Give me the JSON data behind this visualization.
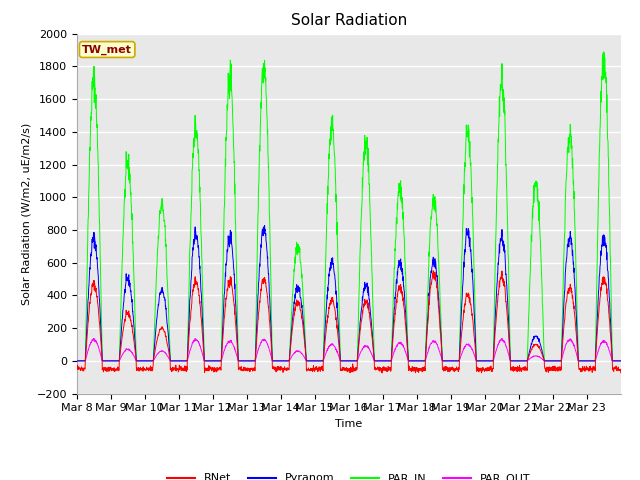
{
  "title": "Solar Radiation",
  "ylabel": "Solar Radiation (W/m2, uE/m2/s)",
  "xlabel": "Time",
  "ylim": [
    -200,
    2000
  ],
  "ytick_values": [
    -200,
    0,
    200,
    400,
    600,
    800,
    1000,
    1200,
    1400,
    1600,
    1800,
    2000
  ],
  "xtick_labels": [
    "Mar 8",
    "Mar 9",
    "Mar 10",
    "Mar 11",
    "Mar 12",
    "Mar 13",
    "Mar 14",
    "Mar 15",
    "Mar 16",
    "Mar 17",
    "Mar 18",
    "Mar 19",
    "Mar 20",
    "Mar 21",
    "Mar 22",
    "Mar 23"
  ],
  "legend_entries": [
    "RNet",
    "Pyranom",
    "PAR_IN",
    "PAR_OUT"
  ],
  "legend_colors": [
    "red",
    "blue",
    "lime",
    "magenta"
  ],
  "annotation_text": "TW_met",
  "annotation_bg": "#ffffcc",
  "annotation_border": "#ccaa00",
  "plot_bg": "#e8e8e8",
  "fig_bg": "#ffffff",
  "grid_color": "#ffffff",
  "title_fontsize": 11,
  "axis_label_fontsize": 8,
  "tick_fontsize": 8,
  "legend_fontsize": 8,
  "annot_fontsize": 8
}
